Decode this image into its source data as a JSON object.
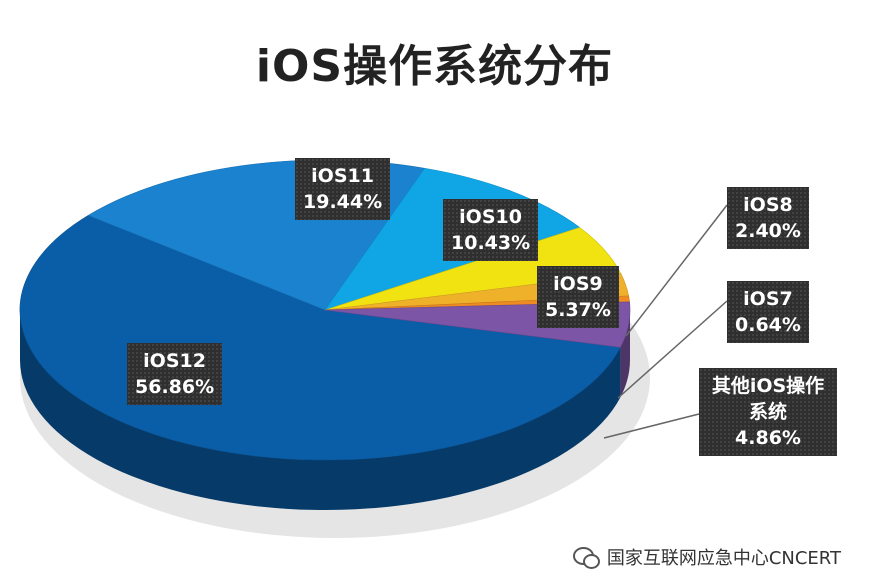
{
  "chart_data": {
    "type": "pie",
    "title": "iOS操作系统分布",
    "slices": [
      {
        "name": "iOS12",
        "value": 56.86,
        "label": "56.86%",
        "color": "#0a5ea8"
      },
      {
        "name": "iOS11",
        "value": 19.44,
        "label": "19.44%",
        "color": "#1a82cf"
      },
      {
        "name": "iOS10",
        "value": 10.43,
        "label": "10.43%",
        "color": "#10a6e6"
      },
      {
        "name": "iOS9",
        "value": 5.37,
        "label": "5.37%",
        "color": "#f1e211"
      },
      {
        "name": "iOS8",
        "value": 2.4,
        "label": "2.40%",
        "color": "#f0b12a"
      },
      {
        "name": "iOS7",
        "value": 0.64,
        "label": "0.64%",
        "color": "#ee8b22"
      },
      {
        "name": "其他iOS操作系统",
        "value": 4.86,
        "label": "4.86%",
        "color": "#7d55a6"
      }
    ]
  },
  "watermark": {
    "text": "国家互联网应急中心CNCERT",
    "icon": "wechat-icon"
  }
}
